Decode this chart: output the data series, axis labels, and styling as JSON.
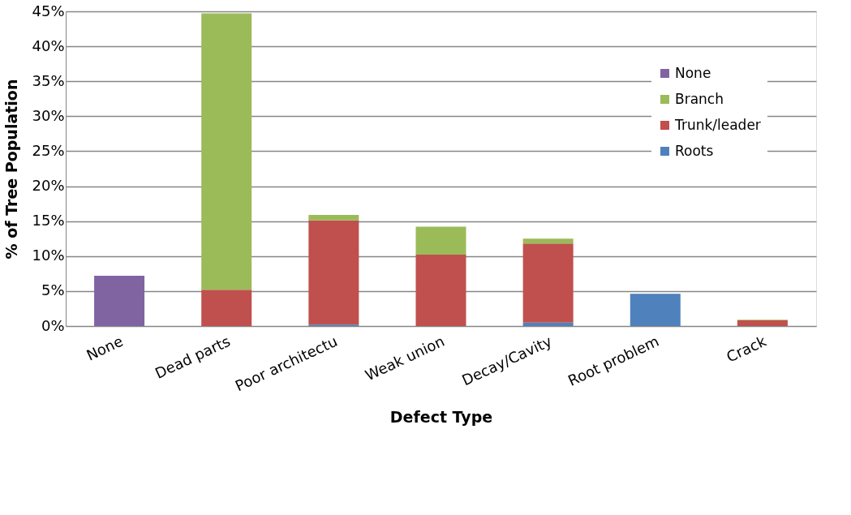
{
  "chart_data": {
    "type": "bar",
    "stacked": true,
    "xlabel": "Defect Type",
    "ylabel": "% of Tree Population",
    "categories": [
      "None",
      "Dead parts",
      "Poor architectu",
      "Weak union",
      "Decay/Cavity",
      "Root problem",
      "Crack"
    ],
    "series": [
      {
        "name": "Roots",
        "color": "#4f81bd",
        "values": [
          0,
          0,
          0.2,
          0,
          0.5,
          4.6,
          0
        ]
      },
      {
        "name": "Trunk/leader",
        "color": "#c0504d",
        "values": [
          0,
          5.2,
          14.9,
          10.2,
          11.3,
          0,
          0.8
        ]
      },
      {
        "name": "Branch",
        "color": "#9bbb59",
        "values": [
          0,
          39.5,
          0.8,
          4.0,
          0.7,
          0,
          0.1
        ]
      },
      {
        "name": "None",
        "color": "#8064a2",
        "values": [
          7.2,
          0,
          0,
          0,
          0,
          0,
          0
        ]
      }
    ],
    "ylim": [
      0,
      45
    ],
    "yticks": [
      {
        "value": 0,
        "label": "0%"
      },
      {
        "value": 5,
        "label": "5%"
      },
      {
        "value": 10,
        "label": "10%"
      },
      {
        "value": 15,
        "label": "15%"
      },
      {
        "value": 20,
        "label": "20%"
      },
      {
        "value": 25,
        "label": "25%"
      },
      {
        "value": 30,
        "label": "30%"
      },
      {
        "value": 35,
        "label": "35%"
      },
      {
        "value": 40,
        "label": "40%"
      },
      {
        "value": 45,
        "label": "45%"
      }
    ],
    "grid": "y",
    "legend": "top right"
  }
}
